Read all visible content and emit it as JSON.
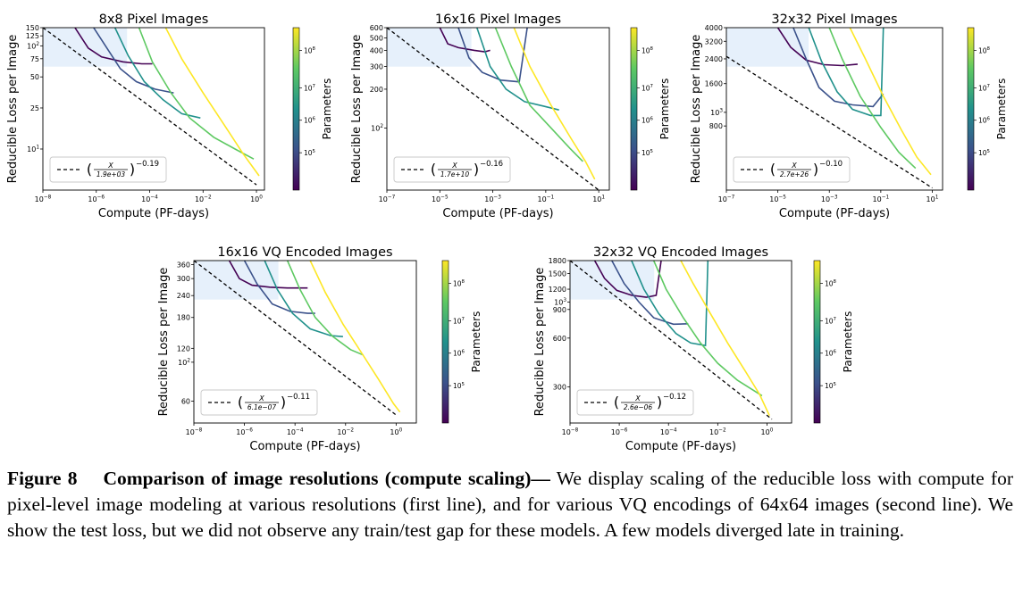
{
  "caption": {
    "label": "Figure 8",
    "title": "Comparison of image resolutions (compute scaling)—",
    "body": " We display scaling of the reducible loss with compute for pixel-level image modeling at various resolutions (first line), and for various VQ encodings of 64x64 images (second line). We show the test loss, but we did not observe any train/test gap for these models. A few models diverged late in training."
  },
  "colorbar": {
    "label": "Parameters",
    "ticks": [
      "10^5",
      "10^6",
      "10^7",
      "10^8"
    ],
    "colors": [
      "#440154",
      "#3b528b",
      "#21918c",
      "#5ec962",
      "#fde725"
    ]
  },
  "chart_data": [
    {
      "type": "line",
      "id": "p8",
      "title": "8x8 Pixel Images",
      "xlabel": "Compute (PF-days)",
      "ylabel": "Reducible Loss per Image",
      "xlim_log10": [
        -8,
        0.3
      ],
      "ylim": [
        4,
        150
      ],
      "xticks": [
        {
          "v": -8,
          "t": "10^-8"
        },
        {
          "v": -6,
          "t": "10^-6"
        },
        {
          "v": -4,
          "t": "10^-4"
        },
        {
          "v": -2,
          "t": "10^-2"
        },
        {
          "v": 0,
          "t": "10^0"
        }
      ],
      "yticks": [
        {
          "v": 10,
          "t": "10^1"
        },
        {
          "v": 25,
          "t": "25"
        },
        {
          "v": 50,
          "t": "50"
        },
        {
          "v": 75,
          "t": "75"
        },
        {
          "v": 100,
          "t": "10^2"
        },
        {
          "v": 125,
          "t": "125"
        },
        {
          "v": 150,
          "t": "150"
        }
      ],
      "fit": {
        "c": "1.9e+03",
        "exp": "−0.19"
      },
      "trend": [
        [
          -8,
          150
        ],
        [
          0,
          4.5
        ]
      ],
      "series": [
        {
          "color": "#440154",
          "points": [
            [
              -6.8,
              150
            ],
            [
              -6.3,
              95
            ],
            [
              -5.8,
              78
            ],
            [
              -5.0,
              70
            ],
            [
              -4.3,
              67
            ],
            [
              -3.9,
              67
            ]
          ]
        },
        {
          "color": "#3b528b",
          "points": [
            [
              -6.1,
              150
            ],
            [
              -5.6,
              95
            ],
            [
              -5.1,
              60
            ],
            [
              -4.5,
              45
            ],
            [
              -3.8,
              38
            ],
            [
              -3.1,
              35
            ]
          ]
        },
        {
          "color": "#21918c",
          "points": [
            [
              -5.3,
              150
            ],
            [
              -4.8,
              80
            ],
            [
              -4.2,
              45
            ],
            [
              -3.5,
              30
            ],
            [
              -2.8,
              22
            ],
            [
              -2.1,
              20
            ]
          ]
        },
        {
          "color": "#5ec962",
          "points": [
            [
              -4.4,
              150
            ],
            [
              -3.9,
              70
            ],
            [
              -3.2,
              35
            ],
            [
              -2.5,
              20
            ],
            [
              -1.6,
              13
            ],
            [
              -0.8,
              10
            ],
            [
              -0.1,
              8
            ]
          ]
        },
        {
          "color": "#fde725",
          "points": [
            [
              -3.4,
              150
            ],
            [
              -2.8,
              75
            ],
            [
              -2.0,
              35
            ],
            [
              -1.2,
              17
            ],
            [
              -0.5,
              9
            ],
            [
              0.1,
              5.5
            ]
          ]
        }
      ]
    },
    {
      "type": "line",
      "id": "p16",
      "title": "16x16 Pixel Images",
      "xlabel": "Compute (PF-days)",
      "ylabel": "Reducible Loss per Image",
      "xlim_log10": [
        -7,
        1.4
      ],
      "ylim": [
        33,
        600
      ],
      "xticks": [
        {
          "v": -7,
          "t": "10^-7"
        },
        {
          "v": -5,
          "t": "10^-5"
        },
        {
          "v": -3,
          "t": "10^-3"
        },
        {
          "v": -1,
          "t": "10^-1"
        },
        {
          "v": 1,
          "t": "10^1"
        }
      ],
      "yticks": [
        {
          "v": 100,
          "t": "10^2"
        },
        {
          "v": 200,
          "t": "200"
        },
        {
          "v": 300,
          "t": "300"
        },
        {
          "v": 400,
          "t": "400"
        },
        {
          "v": 500,
          "t": "500"
        },
        {
          "v": 600,
          "t": "600"
        }
      ],
      "fit": {
        "c": "1.7e+10",
        "exp": "−0.16"
      },
      "trend": [
        [
          -7,
          600
        ],
        [
          1,
          33
        ]
      ],
      "series": [
        {
          "color": "#440154",
          "points": [
            [
              -5.0,
              600
            ],
            [
              -4.7,
              450
            ],
            [
              -4.3,
              420
            ],
            [
              -3.7,
              400
            ],
            [
              -3.3,
              390
            ],
            [
              -3.1,
              400
            ]
          ]
        },
        {
          "color": "#3b528b",
          "points": [
            [
              -4.3,
              600
            ],
            [
              -3.9,
              350
            ],
            [
              -3.4,
              270
            ],
            [
              -2.7,
              235
            ],
            [
              -2.0,
              228
            ],
            [
              -1.7,
              600
            ]
          ]
        },
        {
          "color": "#21918c",
          "points": [
            [
              -3.6,
              600
            ],
            [
              -3.1,
              300
            ],
            [
              -2.5,
              200
            ],
            [
              -1.8,
              160
            ],
            [
              -1.1,
              148
            ],
            [
              -0.5,
              138
            ]
          ]
        },
        {
          "color": "#5ec962",
          "points": [
            [
              -2.9,
              600
            ],
            [
              -2.3,
              300
            ],
            [
              -1.6,
              150
            ],
            [
              -0.8,
              100
            ],
            [
              -0.1,
              70
            ],
            [
              0.4,
              55
            ]
          ]
        },
        {
          "color": "#fde725",
          "points": [
            [
              -2.2,
              600
            ],
            [
              -1.6,
              300
            ],
            [
              -0.8,
              150
            ],
            [
              0.0,
              80
            ],
            [
              0.5,
              55
            ],
            [
              0.85,
              40
            ]
          ]
        }
      ]
    },
    {
      "type": "line",
      "id": "p32",
      "title": "32x32 Pixel Images",
      "xlabel": "Compute (PF-days)",
      "ylabel": "Reducible Loss per Image",
      "xlim_log10": [
        -7,
        1.4
      ],
      "ylim": [
        280,
        4000
      ],
      "xticks": [
        {
          "v": -7,
          "t": "10^-7"
        },
        {
          "v": -5,
          "t": "10^-5"
        },
        {
          "v": -3,
          "t": "10^-3"
        },
        {
          "v": -1,
          "t": "10^-1"
        },
        {
          "v": 1,
          "t": "10^1"
        }
      ],
      "yticks": [
        {
          "v": 800,
          "t": "800"
        },
        {
          "v": 1000,
          "t": "10^3"
        },
        {
          "v": 1600,
          "t": "1600"
        },
        {
          "v": 2400,
          "t": "2400"
        },
        {
          "v": 3200,
          "t": "3200"
        },
        {
          "v": 4000,
          "t": "4000"
        }
      ],
      "fit": {
        "c": "2.7e+26",
        "exp": "−0.10"
      },
      "trend": [
        [
          -7,
          2500
        ],
        [
          1,
          290
        ]
      ],
      "series": [
        {
          "color": "#440154",
          "points": [
            [
              -5.0,
              4000
            ],
            [
              -4.5,
              2900
            ],
            [
              -3.9,
              2350
            ],
            [
              -3.2,
              2180
            ],
            [
              -2.5,
              2150
            ],
            [
              -1.9,
              2200
            ]
          ]
        },
        {
          "color": "#3b528b",
          "points": [
            [
              -4.4,
              4000
            ],
            [
              -3.9,
              2400
            ],
            [
              -3.4,
              1500
            ],
            [
              -2.8,
              1200
            ],
            [
              -2.1,
              1130
            ],
            [
              -1.3,
              1100
            ],
            [
              -0.9,
              1350
            ]
          ]
        },
        {
          "color": "#21918c",
          "points": [
            [
              -3.8,
              4000
            ],
            [
              -3.3,
              2300
            ],
            [
              -2.7,
              1400
            ],
            [
              -2.1,
              1050
            ],
            [
              -1.4,
              950
            ],
            [
              -1.0,
              950
            ],
            [
              -0.9,
              4000
            ]
          ]
        },
        {
          "color": "#5ec962",
          "points": [
            [
              -3.0,
              4000
            ],
            [
              -2.5,
              2400
            ],
            [
              -1.8,
              1300
            ],
            [
              -1.0,
              780
            ],
            [
              -0.3,
              520
            ],
            [
              0.35,
              400
            ]
          ]
        },
        {
          "color": "#fde725",
          "points": [
            [
              -2.2,
              4000
            ],
            [
              -1.6,
              2400
            ],
            [
              -0.9,
              1300
            ],
            [
              -0.2,
              750
            ],
            [
              0.4,
              480
            ],
            [
              0.95,
              360
            ]
          ]
        }
      ]
    },
    {
      "type": "line",
      "id": "vq16",
      "title": "16x16 VQ Encoded Images",
      "xlabel": "Compute (PF-days)",
      "ylabel": "Reducible Loss per Image",
      "xlim_log10": [
        -8,
        0.8
      ],
      "ylim": [
        45,
        380
      ],
      "xticks": [
        {
          "v": -8,
          "t": "10^-8"
        },
        {
          "v": -6,
          "t": "10^-6"
        },
        {
          "v": -4,
          "t": "10^-4"
        },
        {
          "v": -2,
          "t": "10^-2"
        },
        {
          "v": 0,
          "t": "10^0"
        }
      ],
      "yticks": [
        {
          "v": 60,
          "t": "60"
        },
        {
          "v": 100,
          "t": "10^2"
        },
        {
          "v": 120,
          "t": "120"
        },
        {
          "v": 180,
          "t": "180"
        },
        {
          "v": 240,
          "t": "240"
        },
        {
          "v": 300,
          "t": "300"
        },
        {
          "v": 360,
          "t": "360"
        }
      ],
      "fit": {
        "c": "6.1e−07",
        "exp": "−0.11"
      },
      "trend": [
        [
          -8,
          380
        ],
        [
          0,
          50
        ]
      ],
      "series": [
        {
          "color": "#440154",
          "points": [
            [
              -6.6,
              380
            ],
            [
              -6.2,
              300
            ],
            [
              -5.7,
              275
            ],
            [
              -5.0,
              268
            ],
            [
              -4.3,
              265
            ],
            [
              -3.5,
              265
            ]
          ]
        },
        {
          "color": "#3b528b",
          "points": [
            [
              -6.0,
              380
            ],
            [
              -5.5,
              280
            ],
            [
              -4.9,
              215
            ],
            [
              -4.2,
              195
            ],
            [
              -3.5,
              190
            ],
            [
              -3.2,
              190
            ]
          ]
        },
        {
          "color": "#21918c",
          "points": [
            [
              -5.2,
              380
            ],
            [
              -4.7,
              260
            ],
            [
              -4.1,
              190
            ],
            [
              -3.4,
              155
            ],
            [
              -2.6,
              142
            ],
            [
              -2.1,
              140
            ]
          ]
        },
        {
          "color": "#5ec962",
          "points": [
            [
              -4.3,
              380
            ],
            [
              -3.8,
              260
            ],
            [
              -3.2,
              180
            ],
            [
              -2.5,
              140
            ],
            [
              -1.8,
              118
            ],
            [
              -1.3,
              110
            ]
          ]
        },
        {
          "color": "#fde725",
          "points": [
            [
              -3.4,
              380
            ],
            [
              -2.8,
              250
            ],
            [
              -2.1,
              165
            ],
            [
              -1.4,
              115
            ],
            [
              -0.7,
              80
            ],
            [
              -0.1,
              58
            ],
            [
              0.15,
              52
            ]
          ]
        }
      ]
    },
    {
      "type": "line",
      "id": "vq32",
      "title": "32x32 VQ Encoded Images",
      "xlabel": "Compute (PF-days)",
      "ylabel": "Reducible Loss per Image",
      "xlim_log10": [
        -8,
        1.0
      ],
      "ylim": [
        180,
        1800
      ],
      "xticks": [
        {
          "v": -8,
          "t": "10^-8"
        },
        {
          "v": -6,
          "t": "10^-6"
        },
        {
          "v": -4,
          "t": "10^-4"
        },
        {
          "v": -2,
          "t": "10^-2"
        },
        {
          "v": 0,
          "t": "10^0"
        }
      ],
      "yticks": [
        {
          "v": 300,
          "t": "300"
        },
        {
          "v": 600,
          "t": "600"
        },
        {
          "v": 900,
          "t": "900"
        },
        {
          "v": 1000,
          "t": "10^3"
        },
        {
          "v": 1200,
          "t": "1200"
        },
        {
          "v": 1500,
          "t": "1500"
        },
        {
          "v": 1800,
          "t": "1800"
        }
      ],
      "fit": {
        "c": "2.6e−06",
        "exp": "−0.12"
      },
      "trend": [
        [
          -8,
          1800
        ],
        [
          0.2,
          190
        ]
      ],
      "series": [
        {
          "color": "#440154",
          "points": [
            [
              -7.0,
              1800
            ],
            [
              -6.6,
              1400
            ],
            [
              -6.1,
              1180
            ],
            [
              -5.5,
              1100
            ],
            [
              -4.9,
              1070
            ],
            [
              -4.5,
              1100
            ],
            [
              -4.3,
              1800
            ]
          ]
        },
        {
          "color": "#3b528b",
          "points": [
            [
              -6.3,
              1800
            ],
            [
              -5.8,
              1300
            ],
            [
              -5.2,
              1000
            ],
            [
              -4.6,
              800
            ],
            [
              -3.8,
              730
            ],
            [
              -3.2,
              735
            ]
          ]
        },
        {
          "color": "#21918c",
          "points": [
            [
              -5.5,
              1800
            ],
            [
              -5.0,
              1200
            ],
            [
              -4.4,
              850
            ],
            [
              -3.7,
              640
            ],
            [
              -3.1,
              560
            ],
            [
              -2.5,
              540
            ],
            [
              -2.4,
              1800
            ]
          ]
        },
        {
          "color": "#5ec962",
          "points": [
            [
              -4.6,
              1800
            ],
            [
              -4.1,
              1200
            ],
            [
              -3.4,
              800
            ],
            [
              -2.7,
              560
            ],
            [
              -2.0,
              420
            ],
            [
              -1.2,
              330
            ],
            [
              -0.2,
              265
            ]
          ]
        },
        {
          "color": "#fde725",
          "points": [
            [
              -3.5,
              1800
            ],
            [
              -3.0,
              1300
            ],
            [
              -2.3,
              850
            ],
            [
              -1.6,
              560
            ],
            [
              -0.9,
              380
            ],
            [
              -0.3,
              270
            ],
            [
              0.1,
              200
            ]
          ]
        }
      ]
    }
  ]
}
